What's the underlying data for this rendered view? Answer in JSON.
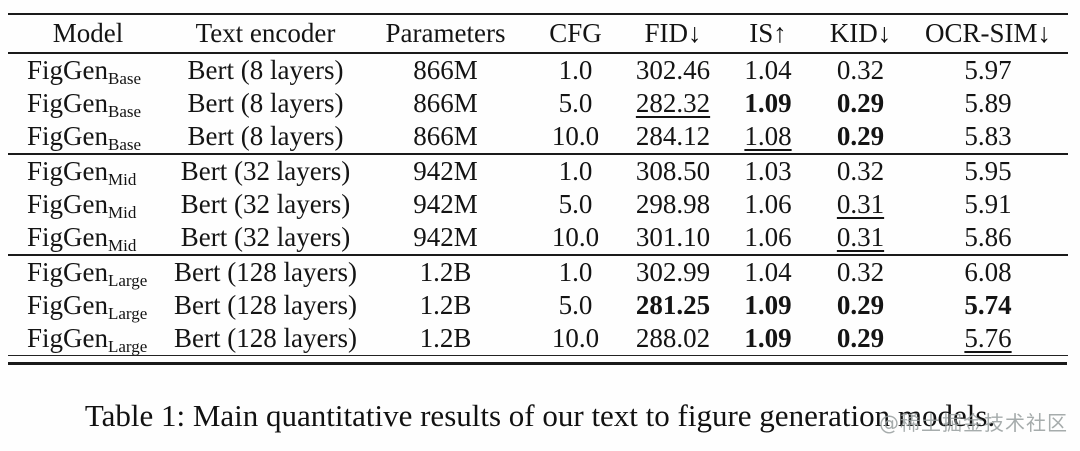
{
  "colors": {
    "text": "#141414",
    "rule": "#1a1a1a",
    "watermark": "#969e9e",
    "background": "#fefefe"
  },
  "table": {
    "headers": [
      "Model",
      "Text encoder",
      "Parameters",
      "CFG",
      "FID↓",
      "IS↑",
      "KID↓",
      "OCR-SIM↓"
    ],
    "rows": [
      {
        "model": "FigGen",
        "model_sub": "Base",
        "encoder": "Bert (8 layers)",
        "params": "866M",
        "cfg": "1.0",
        "fid": "302.46",
        "is": "1.04",
        "kid": "0.32",
        "ocr": "5.97"
      },
      {
        "model": "FigGen",
        "model_sub": "Base",
        "encoder": "Bert (8 layers)",
        "params": "866M",
        "cfg": "5.0",
        "fid": "282.32",
        "is": "1.09",
        "kid": "0.29",
        "ocr": "5.89",
        "styles": {
          "fid": "underline",
          "is": "bold",
          "kid": "bold"
        }
      },
      {
        "model": "FigGen",
        "model_sub": "Base",
        "encoder": "Bert (8 layers)",
        "params": "866M",
        "cfg": "10.0",
        "fid": "284.12",
        "is": "1.08",
        "kid": "0.29",
        "ocr": "5.83",
        "styles": {
          "is": "underline",
          "kid": "bold"
        }
      },
      {
        "model": "FigGen",
        "model_sub": "Mid",
        "encoder": "Bert (32 layers)",
        "params": "942M",
        "cfg": "1.0",
        "fid": "308.50",
        "is": "1.03",
        "kid": "0.32",
        "ocr": "5.95"
      },
      {
        "model": "FigGen",
        "model_sub": "Mid",
        "encoder": "Bert (32 layers)",
        "params": "942M",
        "cfg": "5.0",
        "fid": "298.98",
        "is": "1.06",
        "kid": "0.31",
        "ocr": "5.91",
        "styles": {
          "kid": "underline"
        }
      },
      {
        "model": "FigGen",
        "model_sub": "Mid",
        "encoder": "Bert (32 layers)",
        "params": "942M",
        "cfg": "10.0",
        "fid": "301.10",
        "is": "1.06",
        "kid": "0.31",
        "ocr": "5.86",
        "styles": {
          "kid": "underline"
        }
      },
      {
        "model": "FigGen",
        "model_sub": "Large",
        "encoder": "Bert (128 layers)",
        "params": "1.2B",
        "cfg": "1.0",
        "fid": "302.99",
        "is": "1.04",
        "kid": "0.32",
        "ocr": "6.08"
      },
      {
        "model": "FigGen",
        "model_sub": "Large",
        "encoder": "Bert (128 layers)",
        "params": "1.2B",
        "cfg": "5.0",
        "fid": "281.25",
        "is": "1.09",
        "kid": "0.29",
        "ocr": "5.74",
        "styles": {
          "fid": "bold",
          "is": "bold",
          "kid": "bold",
          "ocr": "bold"
        }
      },
      {
        "model": "FigGen",
        "model_sub": "Large",
        "encoder": "Bert (128 layers)",
        "params": "1.2B",
        "cfg": "10.0",
        "fid": "288.02",
        "is": "1.09",
        "kid": "0.29",
        "ocr": "5.76",
        "styles": {
          "is": "bold",
          "kid": "bold",
          "ocr": "underline"
        }
      }
    ]
  },
  "caption": "Table 1: Main quantitative results of our text to figure generation models.",
  "watermark": "@稀土掘金技术社区"
}
